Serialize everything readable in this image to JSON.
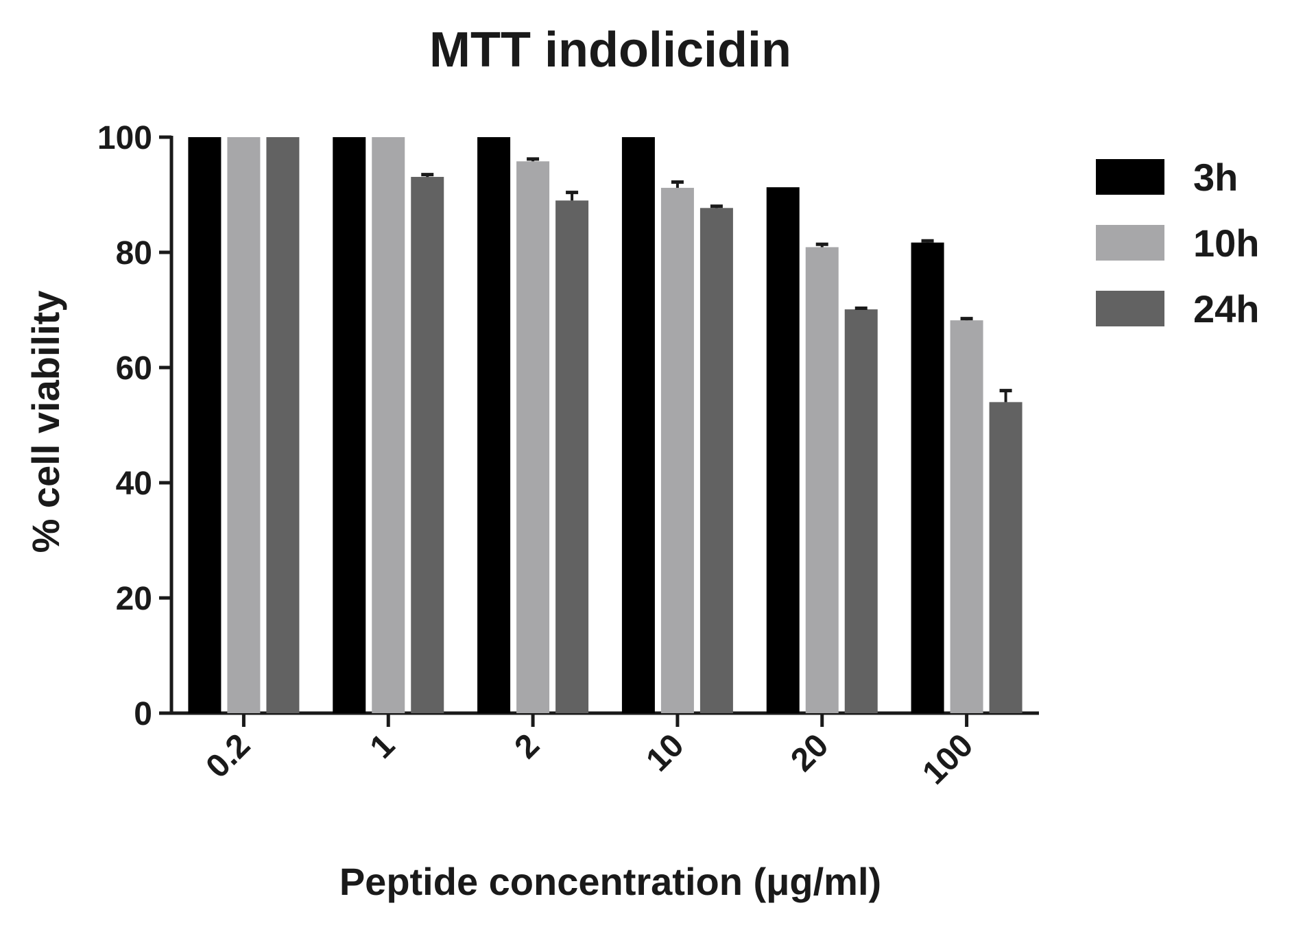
{
  "chart_data": {
    "type": "bar",
    "title": "MTT indolicidin",
    "xlabel": "Peptide concentration (μg/ml)",
    "ylabel": "% cell viability",
    "categories": [
      "0.2",
      "1",
      "2",
      "10",
      "20",
      "100"
    ],
    "ylim": [
      0,
      100
    ],
    "yticks": [
      0,
      20,
      40,
      60,
      80,
      100
    ],
    "grid": false,
    "legend_position": "right",
    "series": [
      {
        "name": "3h",
        "color": "#000000",
        "values": [
          100,
          100,
          100,
          100,
          91.3,
          81.7
        ],
        "errors": [
          0,
          0,
          0,
          0,
          0,
          0.3
        ]
      },
      {
        "name": "10h",
        "color": "#a7a7a9",
        "values": [
          100,
          100,
          95.8,
          91.2,
          80.9,
          68.2
        ],
        "errors": [
          0,
          0,
          0.4,
          1.0,
          0.5,
          0.3
        ]
      },
      {
        "name": "24h",
        "color": "#626262",
        "values": [
          100,
          93.1,
          89.0,
          87.7,
          70.1,
          54.0
        ],
        "errors": [
          0,
          0.4,
          1.4,
          0.3,
          0.2,
          2.0
        ]
      }
    ]
  }
}
